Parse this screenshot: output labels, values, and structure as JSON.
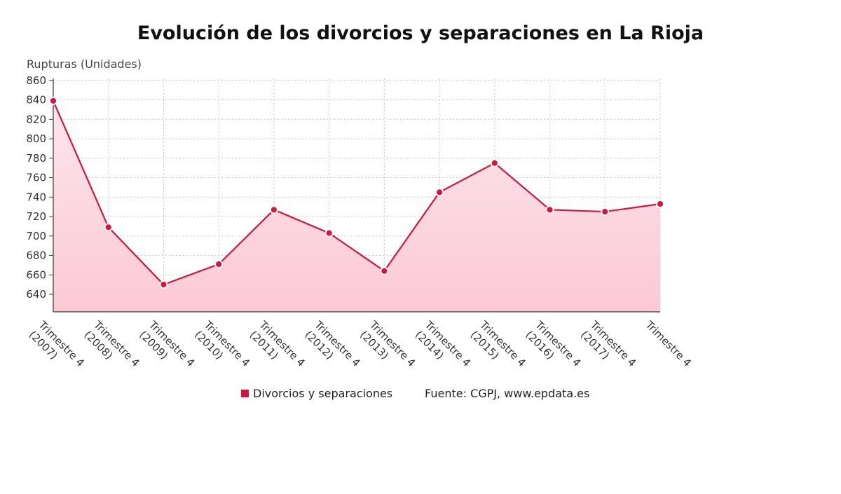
{
  "chart_data": {
    "type": "area",
    "title": "Evolución de los divorcios y separaciones en La Rioja",
    "ylabel": "Rupturas (Unidades)",
    "xlabel": "",
    "ylim": [
      622,
      862
    ],
    "yticks": [
      640,
      660,
      680,
      700,
      720,
      740,
      760,
      780,
      800,
      820,
      840,
      860
    ],
    "grid": true,
    "legend_position": "bottom",
    "categories": [
      [
        "Trimestre 4",
        "(2007)"
      ],
      [
        "Trimestre 4",
        "(2008)"
      ],
      [
        "Trimestre 4",
        "(2009)"
      ],
      [
        "Trimestre 4",
        "(2010)"
      ],
      [
        "Trimestre 4",
        "(2011)"
      ],
      [
        "Trimestre 4",
        "(2012)"
      ],
      [
        "Trimestre 4",
        "(2013)"
      ],
      [
        "Trimestre 4",
        "(2014)"
      ],
      [
        "Trimestre 4",
        "(2015)"
      ],
      [
        "Trimestre 4",
        "(2016)"
      ],
      [
        "Trimestre 4",
        "(2017)"
      ],
      [
        "Trimestre 4"
      ]
    ],
    "series": [
      {
        "name": "Divorcios y separaciones",
        "values": [
          839,
          709,
          650,
          671,
          727,
          703,
          664,
          745,
          775,
          727,
          725,
          733
        ],
        "color": "#d6153f",
        "fill_top": "#fde6ec",
        "fill_bottom": "#fcc9d5"
      }
    ],
    "source": "Fuente: CGPJ, www.epdata.es"
  }
}
